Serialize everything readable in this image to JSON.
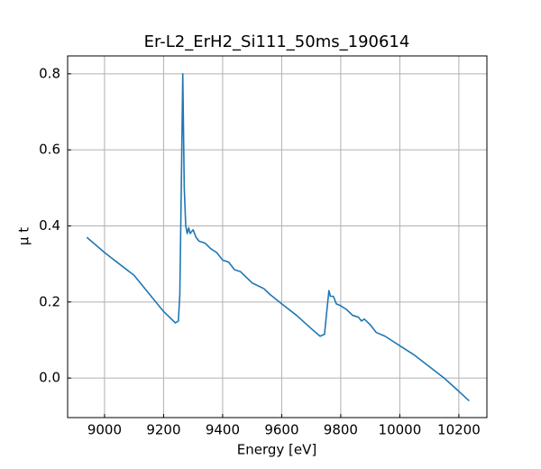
{
  "chart_data": {
    "type": "line",
    "title": "Er-L2_ErH2_Si111_50ms_190614",
    "x_label": "Energy [eV]",
    "y_label": "μ t",
    "x": [
      8940,
      9000,
      9100,
      9200,
      9240,
      9250,
      9255,
      9260,
      9265,
      9270,
      9275,
      9280,
      9285,
      9290,
      9300,
      9310,
      9320,
      9340,
      9360,
      9380,
      9400,
      9420,
      9440,
      9460,
      9500,
      9540,
      9560,
      9600,
      9650,
      9700,
      9730,
      9745,
      9752,
      9760,
      9765,
      9775,
      9785,
      9800,
      9820,
      9840,
      9860,
      9870,
      9880,
      9900,
      9920,
      9950,
      10000,
      10050,
      10100,
      10150,
      10200,
      10235
    ],
    "series": [
      {
        "name": "mu",
        "color": "#1f77b4",
        "values": [
          0.37,
          0.33,
          0.27,
          0.175,
          0.145,
          0.15,
          0.22,
          0.5,
          0.8,
          0.5,
          0.4,
          0.38,
          0.395,
          0.38,
          0.39,
          0.37,
          0.36,
          0.355,
          0.34,
          0.33,
          0.31,
          0.305,
          0.285,
          0.28,
          0.25,
          0.235,
          0.22,
          0.195,
          0.165,
          0.13,
          0.11,
          0.115,
          0.17,
          0.23,
          0.215,
          0.215,
          0.195,
          0.19,
          0.18,
          0.165,
          0.16,
          0.15,
          0.155,
          0.14,
          0.12,
          0.11,
          0.085,
          0.06,
          0.03,
          0.0,
          -0.035,
          -0.06
        ]
      }
    ],
    "xlim": [
      8875,
      10295
    ],
    "ylim": [
      -0.104,
      0.847
    ],
    "xticks": [
      9000,
      9200,
      9400,
      9600,
      9800,
      10000,
      10200
    ],
    "yticks": [
      0.0,
      0.2,
      0.4,
      0.6,
      0.8
    ],
    "grid": true
  }
}
